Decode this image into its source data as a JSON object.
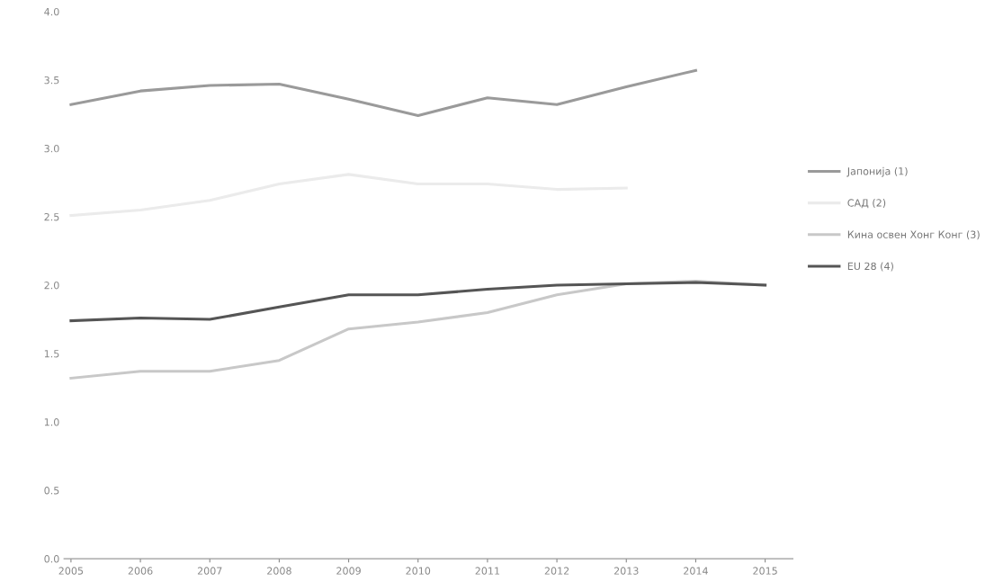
{
  "chart_data": {
    "type": "line",
    "categories": [
      "2005",
      "2006",
      "2007",
      "2008",
      "2009",
      "2010",
      "2011",
      "2012",
      "2013",
      "2014",
      "2015"
    ],
    "series": [
      {
        "name": "Јапонија (1)",
        "color": "#9a9a9a",
        "values": [
          3.32,
          3.42,
          3.46,
          3.47,
          3.36,
          3.24,
          3.37,
          3.32,
          3.45,
          3.57,
          null
        ]
      },
      {
        "name": "САД (2)",
        "color": "#ebebeb",
        "values": [
          2.51,
          2.55,
          2.62,
          2.74,
          2.81,
          2.74,
          2.74,
          2.7,
          2.71,
          null,
          null
        ]
      },
      {
        "name": "Кина освен Хонг Конг (3)",
        "color": "#c8c8c8",
        "values": [
          1.32,
          1.37,
          1.37,
          1.45,
          1.68,
          1.73,
          1.8,
          1.93,
          2.01,
          2.03,
          2.0
        ]
      },
      {
        "name": "EU 28 (4)",
        "color": "#555555",
        "values": [
          1.74,
          1.76,
          1.75,
          1.84,
          1.93,
          1.93,
          1.97,
          2.0,
          2.01,
          2.02,
          2.0
        ]
      }
    ],
    "ylim": [
      0,
      4.0
    ],
    "yticks": [
      {
        "value": 0,
        "label": "0.0"
      },
      {
        "value": 0.5,
        "label": "0.5"
      },
      {
        "value": 1.0,
        "label": "1.0"
      },
      {
        "value": 1.5,
        "label": "1.5"
      },
      {
        "value": 2.0,
        "label": "2.0"
      },
      {
        "value": 2.5,
        "label": "2.5"
      },
      {
        "value": 3.0,
        "label": "3.0"
      },
      {
        "value": 3.5,
        "label": "3.5"
      },
      {
        "value": 4.0,
        "label": "4.0"
      }
    ],
    "grid": false,
    "legend": "right",
    "marker": "none",
    "line_style": "solid"
  }
}
